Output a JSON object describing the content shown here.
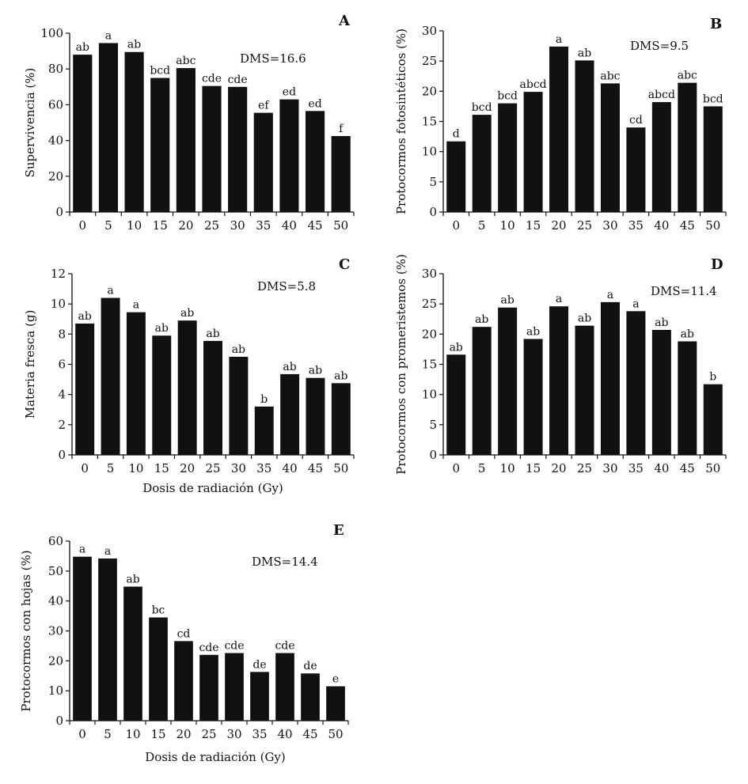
{
  "style": {
    "bar_color": "#111111",
    "axis_color": "#111111",
    "background": "#ffffff"
  },
  "chart_data": [
    {
      "id": "A",
      "type": "bar",
      "letter": "A",
      "ylabel": "Supervivencia (%)",
      "xlabel": "",
      "ylim": [
        0,
        100
      ],
      "yticks": [
        0,
        20,
        40,
        60,
        80,
        100
      ],
      "categories": [
        "0",
        "5",
        "10",
        "15",
        "20",
        "25",
        "30",
        "35",
        "40",
        "45",
        "50"
      ],
      "values": [
        88,
        94.5,
        89.5,
        75,
        80.5,
        70.5,
        70,
        55.5,
        63,
        56.5,
        42.5
      ],
      "labels": [
        "ab",
        "a",
        "ab",
        "bcd",
        "abc",
        "cde",
        "cde",
        "ef",
        "ed",
        "ed",
        "f"
      ],
      "annotation": "DMS=16.6"
    },
    {
      "id": "B",
      "type": "bar",
      "letter": "B",
      "ylabel": "Protocormos fotosintéticos (%)",
      "xlabel": "",
      "ylim": [
        0,
        30
      ],
      "yticks": [
        0,
        5,
        10,
        15,
        20,
        25,
        30
      ],
      "categories": [
        "0",
        "5",
        "10",
        "15",
        "20",
        "25",
        "30",
        "35",
        "40",
        "45",
        "50"
      ],
      "values": [
        11.7,
        16.1,
        18,
        19.9,
        27.4,
        25.1,
        21.3,
        14,
        18.2,
        21.4,
        17.5
      ],
      "labels": [
        "d",
        "bcd",
        "bcd",
        "abcd",
        "a",
        "ab",
        "abc",
        "cd",
        "abcd",
        "abc",
        "bcd"
      ],
      "annotation": "DMS=9.5"
    },
    {
      "id": "C",
      "type": "bar",
      "letter": "C",
      "ylabel": "Materia fresca (g)",
      "xlabel": "Dosis de radiación (Gy)",
      "ylim": [
        0,
        12
      ],
      "yticks": [
        0,
        2,
        4,
        6,
        8,
        10,
        12
      ],
      "categories": [
        "0",
        "5",
        "10",
        "15",
        "20",
        "25",
        "30",
        "35",
        "40",
        "45",
        "50"
      ],
      "values": [
        8.7,
        10.4,
        9.45,
        7.9,
        8.9,
        7.55,
        6.5,
        3.2,
        5.35,
        5.1,
        4.75
      ],
      "labels": [
        "ab",
        "a",
        "a",
        "ab",
        "ab",
        "ab",
        "ab",
        "b",
        "ab",
        "ab",
        "ab"
      ],
      "annotation": "DMS=5.8"
    },
    {
      "id": "D",
      "type": "bar",
      "letter": "D",
      "ylabel": "Protocormos con promeristemos (%)",
      "xlabel": "",
      "ylim": [
        0,
        30
      ],
      "yticks": [
        0,
        5,
        10,
        15,
        20,
        25,
        30
      ],
      "categories": [
        "0",
        "5",
        "10",
        "15",
        "20",
        "25",
        "30",
        "35",
        "40",
        "45",
        "50"
      ],
      "values": [
        16.6,
        21.2,
        24.4,
        19.2,
        24.6,
        21.4,
        25.3,
        23.8,
        20.7,
        18.8,
        11.7
      ],
      "labels": [
        "ab",
        "ab",
        "ab",
        "ab",
        "a",
        "ab",
        "a",
        "a",
        "ab",
        "ab",
        "b"
      ],
      "annotation": "DMS=11.4"
    },
    {
      "id": "E",
      "type": "bar",
      "letter": "E",
      "ylabel": "Protocormos con hojas (%)",
      "xlabel": "Dosis de radiación (Gy)",
      "ylim": [
        0,
        60
      ],
      "yticks": [
        0,
        10,
        20,
        30,
        40,
        50,
        60
      ],
      "categories": [
        "0",
        "5",
        "10",
        "15",
        "20",
        "25",
        "30",
        "35",
        "40",
        "45",
        "50"
      ],
      "values": [
        54.8,
        54.2,
        44.8,
        34.5,
        26.6,
        22,
        22.6,
        16.3,
        22.6,
        15.8,
        11.5
      ],
      "labels": [
        "a",
        "a",
        "ab",
        "bc",
        "cd",
        "cde",
        "cde",
        "de",
        "cde",
        "de",
        "e"
      ],
      "annotation": "DMS=14.4"
    }
  ]
}
